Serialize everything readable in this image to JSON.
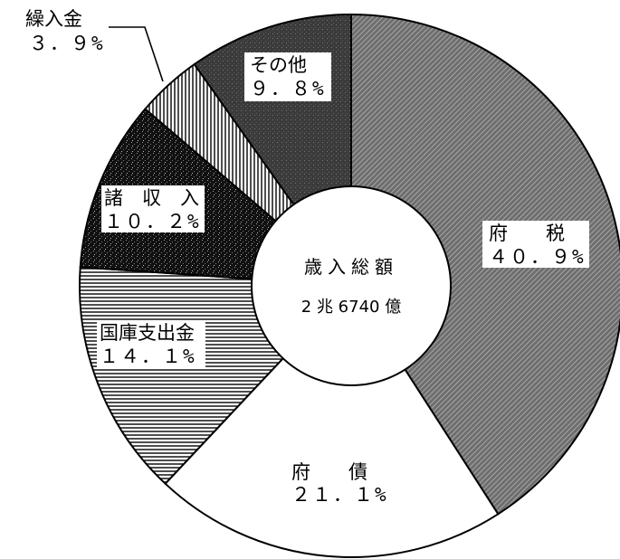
{
  "chart_data": {
    "type": "pie",
    "center_title": "歳入総額",
    "center_total": "2 兆 6740 億",
    "slices": [
      {
        "name": "府税",
        "label_line1": "府　　税",
        "label_line2": "４０．９%",
        "value": 40.9,
        "color": "#5a5a5a",
        "pattern": "diag-gray"
      },
      {
        "name": "府債",
        "label_line1": "府　　債",
        "label_line2": "２１．１%",
        "value": 21.1,
        "color": "#ffffff",
        "pattern": "none"
      },
      {
        "name": "国庫支出金",
        "label_line1": "国庫支出金",
        "label_line2": "１４．１%",
        "value": 14.1,
        "color": "#888888",
        "pattern": "horizontal"
      },
      {
        "name": "諸収入",
        "label_line1": "諸　収　入",
        "label_line2": "１０．２%",
        "value": 10.2,
        "color": "#111111",
        "pattern": "speckle"
      },
      {
        "name": "繰入金",
        "label_line1": "繰入金",
        "label_line2": "３．９%",
        "value": 3.9,
        "color": "#ffffff",
        "pattern": "vertical"
      },
      {
        "name": "その他",
        "label_line1": "その他",
        "label_line2": "９．８%",
        "value": 9.8,
        "color": "#3a3a3a",
        "pattern": "dark-speckle"
      }
    ]
  }
}
